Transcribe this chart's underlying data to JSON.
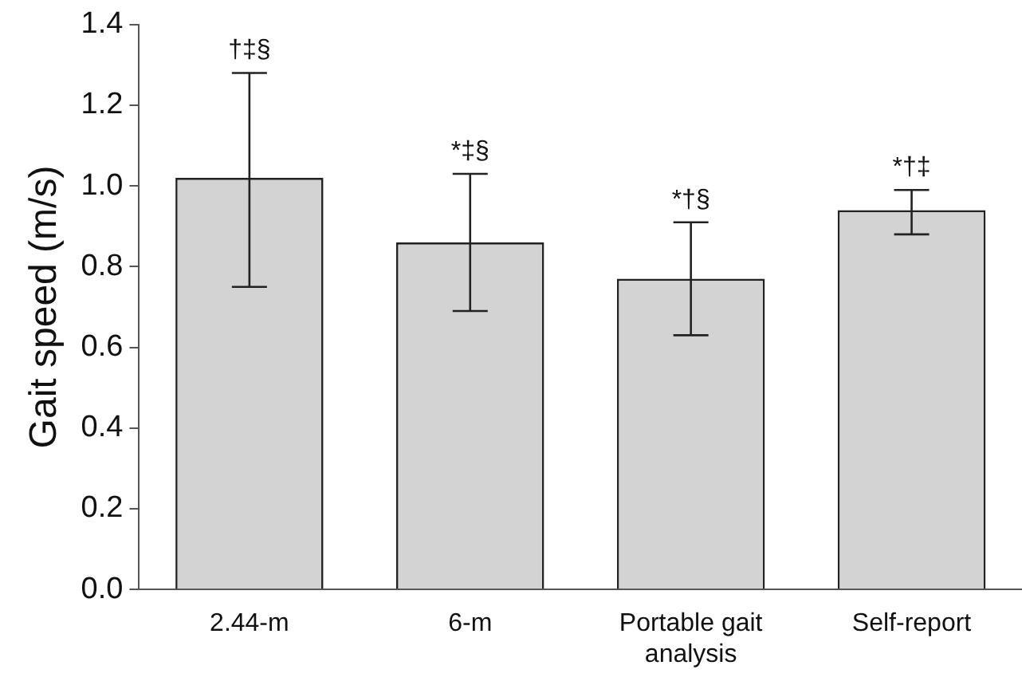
{
  "chart_data": {
    "type": "bar",
    "ylabel": "Gait speed (m/s)",
    "categories": [
      "2.44-m",
      "6-m",
      "Portable gait analysis",
      "Self-report"
    ],
    "values": [
      1.02,
      0.86,
      0.77,
      0.94
    ],
    "errors": [
      [
        0.75,
        1.28
      ],
      [
        0.69,
        1.03
      ],
      [
        0.63,
        0.91
      ],
      [
        0.88,
        0.99
      ]
    ],
    "color": "#d3d3d3",
    "ylim": [
      0,
      1.4
    ],
    "yticks": [
      {
        "value": 0,
        "label": "0.0"
      },
      {
        "value": 0.2,
        "label": "0.2"
      },
      {
        "value": 0.4,
        "label": "0.4"
      },
      {
        "value": 0.6,
        "label": "0.6"
      },
      {
        "value": 0.8,
        "label": "0.8"
      },
      {
        "value": 1,
        "label": "1.0"
      },
      {
        "value": 1.2,
        "label": "1.2"
      },
      {
        "value": 1.4,
        "label": "1.4"
      }
    ],
    "grid": false,
    "legend": false,
    "annotations": [
      {
        "text": "†‡§",
        "x": "2.44-m",
        "y": 1.28
      },
      {
        "text": "*‡§",
        "x": "6-m",
        "y": 1.03
      },
      {
        "text": "*†§",
        "x": "Portable gait analysis",
        "y": 0.91
      },
      {
        "text": "*†‡",
        "x": "Self-report",
        "y": 0.99
      }
    ]
  }
}
